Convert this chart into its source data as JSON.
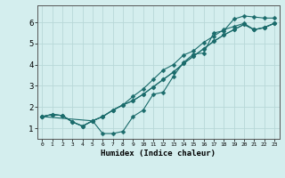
{
  "xlabel": "Humidex (Indice chaleur)",
  "bg_color": "#d4eeee",
  "grid_color": "#b8d8d8",
  "line_color": "#1a6b6b",
  "xlim": [
    -0.5,
    23.5
  ],
  "ylim": [
    0.5,
    6.8
  ],
  "xticks": [
    0,
    1,
    2,
    3,
    4,
    5,
    6,
    7,
    8,
    9,
    10,
    11,
    12,
    13,
    14,
    15,
    16,
    17,
    18,
    19,
    20,
    21,
    22,
    23
  ],
  "yticks": [
    1,
    2,
    3,
    4,
    5,
    6
  ],
  "line1_x": [
    0,
    1,
    2,
    3,
    4,
    5,
    6,
    7,
    8,
    9,
    10,
    11,
    12,
    13,
    14,
    15,
    16,
    17,
    18,
    19,
    20,
    21,
    22,
    23
  ],
  "line1_y": [
    1.55,
    1.65,
    1.6,
    1.3,
    1.1,
    1.35,
    0.75,
    0.75,
    0.85,
    1.55,
    1.85,
    2.6,
    2.7,
    3.45,
    4.1,
    4.5,
    4.55,
    5.5,
    5.6,
    6.15,
    6.3,
    6.25,
    6.2,
    6.2
  ],
  "line2_x": [
    0,
    1,
    2,
    3,
    4,
    5,
    6,
    7,
    8,
    9,
    10,
    11,
    12,
    13,
    14,
    15,
    16,
    17,
    18,
    19,
    20,
    21,
    22,
    23
  ],
  "line2_y": [
    1.55,
    1.65,
    1.6,
    1.3,
    1.1,
    1.35,
    1.55,
    1.85,
    2.1,
    2.5,
    2.85,
    3.3,
    3.75,
    4.0,
    4.45,
    4.65,
    5.05,
    5.35,
    5.65,
    5.8,
    5.95,
    5.65,
    5.75,
    5.95
  ],
  "line3_x": [
    0,
    1,
    2,
    3,
    4,
    5,
    6,
    7,
    8,
    9,
    10,
    11,
    12,
    13,
    14,
    15,
    16,
    17,
    18,
    19,
    20,
    21,
    22,
    23
  ],
  "line3_y": [
    1.55,
    1.65,
    1.6,
    1.3,
    1.1,
    1.35,
    1.55,
    1.85,
    2.1,
    2.3,
    2.6,
    2.95,
    3.3,
    3.65,
    4.05,
    4.4,
    4.75,
    5.1,
    5.4,
    5.65,
    5.9,
    5.65,
    5.75,
    5.95
  ],
  "line4_x": [
    0,
    5,
    6,
    7,
    8,
    9,
    10,
    11,
    12,
    13,
    14,
    15,
    16,
    17,
    18,
    19,
    20,
    21,
    22,
    23
  ],
  "line4_y": [
    1.55,
    1.35,
    1.55,
    1.85,
    2.1,
    2.3,
    2.6,
    2.95,
    3.3,
    3.65,
    4.05,
    4.4,
    4.75,
    5.1,
    5.4,
    5.65,
    5.9,
    5.65,
    5.75,
    5.95
  ]
}
